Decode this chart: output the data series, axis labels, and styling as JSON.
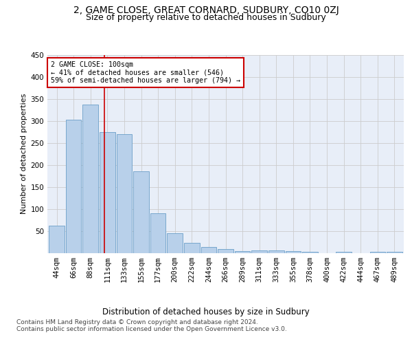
{
  "title": "2, GAME CLOSE, GREAT CORNARD, SUDBURY, CO10 0ZJ",
  "subtitle": "Size of property relative to detached houses in Sudbury",
  "xlabel": "Distribution of detached houses by size in Sudbury",
  "ylabel": "Number of detached properties",
  "categories": [
    "44sqm",
    "66sqm",
    "88sqm",
    "111sqm",
    "133sqm",
    "155sqm",
    "177sqm",
    "200sqm",
    "222sqm",
    "244sqm",
    "266sqm",
    "289sqm",
    "311sqm",
    "333sqm",
    "355sqm",
    "378sqm",
    "400sqm",
    "422sqm",
    "444sqm",
    "467sqm",
    "489sqm"
  ],
  "values": [
    62,
    303,
    338,
    275,
    270,
    185,
    90,
    45,
    23,
    13,
    8,
    4,
    5,
    5,
    4,
    3,
    0,
    3,
    0,
    3,
    3
  ],
  "bar_color": "#b8d0ea",
  "bar_edge_color": "#6a9ec8",
  "vline_x": 2.82,
  "vline_color": "#cc0000",
  "annotation_text": "2 GAME CLOSE: 100sqm\n← 41% of detached houses are smaller (546)\n59% of semi-detached houses are larger (794) →",
  "annotation_box_color": "#ffffff",
  "annotation_box_edge": "#cc0000",
  "grid_color": "#cccccc",
  "background_color": "#e8eef8",
  "ylim": [
    0,
    450
  ],
  "yticks": [
    0,
    50,
    100,
    150,
    200,
    250,
    300,
    350,
    400,
    450
  ],
  "footer_line1": "Contains HM Land Registry data © Crown copyright and database right 2024.",
  "footer_line2": "Contains public sector information licensed under the Open Government Licence v3.0.",
  "title_fontsize": 10,
  "subtitle_fontsize": 9,
  "xlabel_fontsize": 8.5,
  "ylabel_fontsize": 8,
  "tick_fontsize": 7.5,
  "footer_fontsize": 6.5
}
